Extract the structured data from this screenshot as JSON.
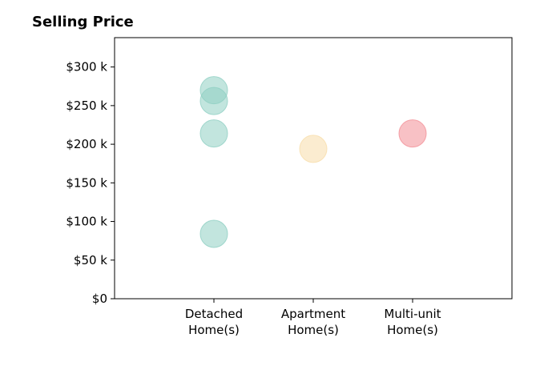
{
  "chart_data": {
    "type": "scatter",
    "title": "Selling Price",
    "xlabel": "",
    "ylabel": "",
    "categories": [
      [
        "Detached",
        "Home(s)"
      ],
      [
        "Apartment",
        "Home(s)"
      ],
      [
        "Multi-unit",
        "Home(s)"
      ]
    ],
    "y_tick_labels": [
      "$0",
      "$50 k",
      "$100 k",
      "$150 k",
      "$200 k",
      "$250 k",
      "$300 k"
    ],
    "y_ticks": [
      0,
      50000,
      100000,
      150000,
      200000,
      250000,
      300000
    ],
    "ylim": [
      0,
      338000
    ],
    "xlim": [
      -1,
      3
    ],
    "grid": false,
    "points": [
      {
        "category": 0,
        "y": 270000,
        "color": "#8fcfc3"
      },
      {
        "category": 0,
        "y": 256000,
        "color": "#8fcfc3"
      },
      {
        "category": 0,
        "y": 214000,
        "color": "#8fcfc3"
      },
      {
        "category": 0,
        "y": 84000,
        "color": "#8fcfc3"
      },
      {
        "category": 1,
        "y": 194000,
        "color": "#f7ddaa"
      },
      {
        "category": 2,
        "y": 214000,
        "color": "#f28e96"
      }
    ]
  }
}
